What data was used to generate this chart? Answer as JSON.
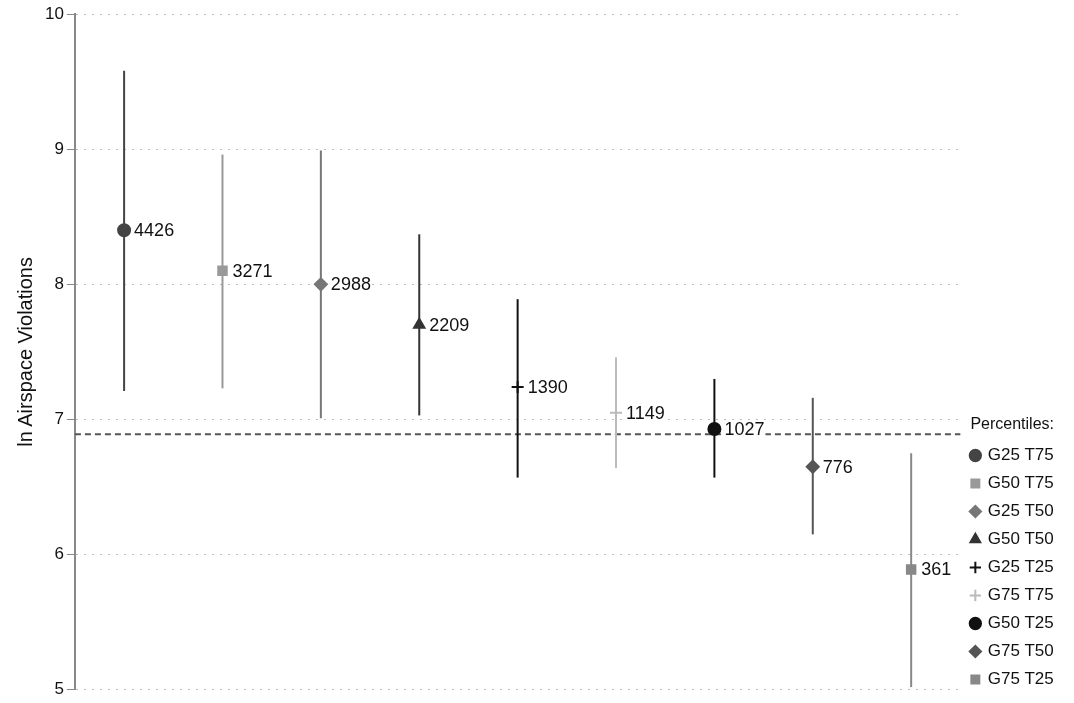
{
  "chart_data": {
    "type": "scatter",
    "ylabel": "ln Airspace Violations",
    "legend_title": "Percentiles:",
    "categories": [
      null,
      null,
      null,
      null,
      null,
      null,
      null,
      null,
      null
    ],
    "ylim": [
      5,
      10
    ],
    "yticks": [
      5,
      6,
      7,
      8,
      9,
      10
    ],
    "grid": "y",
    "legend": "right",
    "tick_labels": "y",
    "ref_lines": [
      {
        "axis": "y",
        "value": 6.89,
        "line_style": "dashed",
        "color": "#555555"
      }
    ],
    "annotations": [
      {
        "text": "4426",
        "y": 8.4
      },
      {
        "text": "3271",
        "y": 8.1
      },
      {
        "text": "2988",
        "y": 8.0
      },
      {
        "text": "2209",
        "y": 7.7
      },
      {
        "text": "1390",
        "y": 7.24
      },
      {
        "text": "1149",
        "y": 7.05
      },
      {
        "text": "1027",
        "y": 6.93
      },
      {
        "text": "776",
        "y": 6.65
      },
      {
        "text": "361",
        "y": 5.89
      }
    ],
    "series": [
      {
        "name": "G25 T75",
        "color": "#444444",
        "marker": "circle",
        "values": [
          8.4,
          null,
          null,
          null,
          null,
          null,
          null,
          null,
          null
        ],
        "errors": [
          [
            7.21,
            9.58
          ],
          null,
          null,
          null,
          null,
          null,
          null,
          null,
          null
        ]
      },
      {
        "name": "G50 T75",
        "color": "#999999",
        "marker": "square",
        "values": [
          null,
          8.1,
          null,
          null,
          null,
          null,
          null,
          null,
          null
        ],
        "errors": [
          null,
          [
            7.23,
            8.96
          ],
          null,
          null,
          null,
          null,
          null,
          null,
          null
        ]
      },
      {
        "name": "G25 T50",
        "color": "#777777",
        "marker": "diamond",
        "values": [
          null,
          null,
          8.0,
          null,
          null,
          null,
          null,
          null,
          null
        ],
        "errors": [
          null,
          null,
          [
            7.01,
            8.99
          ],
          null,
          null,
          null,
          null,
          null,
          null
        ]
      },
      {
        "name": "G50 T50",
        "color": "#333333",
        "marker": "triangle",
        "values": [
          null,
          null,
          null,
          7.7,
          null,
          null,
          null,
          null,
          null
        ],
        "errors": [
          null,
          null,
          null,
          [
            7.03,
            8.37
          ],
          null,
          null,
          null,
          null,
          null
        ]
      },
      {
        "name": "G25 T25",
        "color": "#111111",
        "marker": "cross",
        "values": [
          null,
          null,
          null,
          null,
          7.24,
          null,
          null,
          null,
          null
        ],
        "errors": [
          null,
          null,
          null,
          null,
          [
            6.57,
            7.89
          ],
          null,
          null,
          null,
          null
        ]
      },
      {
        "name": "G75 T75",
        "color": "#bbbbbb",
        "marker": "cross",
        "values": [
          null,
          null,
          null,
          null,
          null,
          7.05,
          null,
          null,
          null
        ],
        "errors": [
          null,
          null,
          null,
          null,
          null,
          [
            6.64,
            7.46
          ],
          null,
          null,
          null
        ]
      },
      {
        "name": "G50 T25",
        "color": "#111111",
        "marker": "circle",
        "values": [
          null,
          null,
          null,
          null,
          null,
          null,
          6.93,
          null,
          null
        ],
        "errors": [
          null,
          null,
          null,
          null,
          null,
          null,
          [
            6.57,
            7.3
          ],
          null,
          null
        ]
      },
      {
        "name": "G75 T50",
        "color": "#555555",
        "marker": "diamond",
        "values": [
          null,
          null,
          null,
          null,
          null,
          null,
          null,
          6.65,
          null
        ],
        "errors": [
          null,
          null,
          null,
          null,
          null,
          null,
          null,
          [
            6.15,
            7.16
          ],
          null
        ]
      },
      {
        "name": "G75 T25",
        "color": "#888888",
        "marker": "square",
        "values": [
          null,
          null,
          null,
          null,
          null,
          null,
          null,
          null,
          5.89
        ],
        "errors": [
          null,
          null,
          null,
          null,
          null,
          null,
          null,
          null,
          [
            5.02,
            6.75
          ]
        ]
      }
    ]
  }
}
